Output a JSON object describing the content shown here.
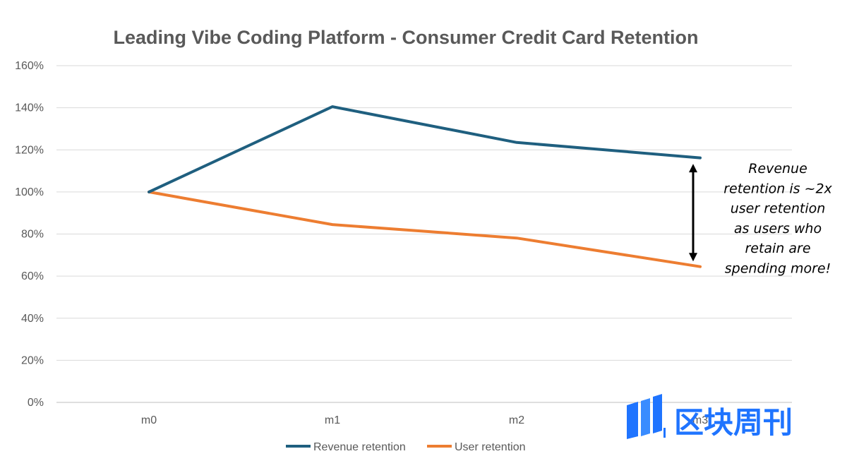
{
  "chart_data": {
    "type": "line",
    "title": "Leading Vibe Coding Platform - Consumer Credit Card Retention",
    "categories": [
      "m0",
      "m1",
      "m2",
      "m3"
    ],
    "series": [
      {
        "name": "Revenue retention",
        "color": "#1f5f7f",
        "values": [
          1.0,
          1.405,
          1.235,
          1.162
        ]
      },
      {
        "name": "User retention",
        "color": "#ed7d31",
        "values": [
          1.0,
          0.845,
          0.781,
          0.645
        ]
      }
    ],
    "ylim": [
      0,
      1.6
    ],
    "yticks": [
      "0%",
      "20%",
      "40%",
      "60%",
      "80%",
      "100%",
      "120%",
      "140%",
      "160%"
    ],
    "ytick_values": [
      0,
      0.2,
      0.4,
      0.6,
      0.8,
      1.0,
      1.2,
      1.4,
      1.6
    ],
    "grid": true,
    "legend_position": "bottom",
    "annotation": {
      "lines": [
        "Revenue",
        "retention is ~2x",
        "user retention",
        "as users who",
        "retain are",
        "spending more!"
      ],
      "arrow": {
        "category": "m3",
        "from_value": 1.16,
        "to_value": 0.68
      }
    }
  },
  "watermark": {
    "text": "区块周刊",
    "color": "#1f74ff"
  }
}
